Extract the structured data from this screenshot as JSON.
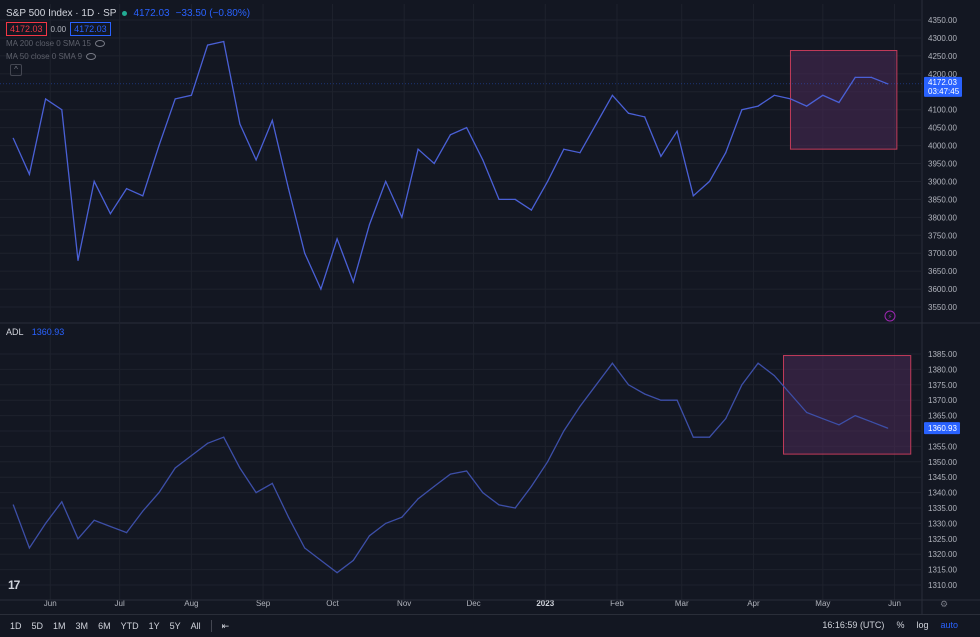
{
  "header": {
    "symbol": "S&P 500 Index · 1D · SP",
    "last": "4172.03",
    "change": "−33.50 (−0.80%)",
    "sell": "4172.03",
    "spread": "0.00",
    "buy": "4172.03",
    "ma200": "MA 200 close 0 SMA 15",
    "ma50": "MA 50 close 0 SMA 9",
    "collapse_icon": "chevron-up-icon"
  },
  "adl_legend": {
    "name": "ADL",
    "value": "1360.93"
  },
  "price_axis": {
    "ticks": [
      "4350.00",
      "4300.00",
      "4250.00",
      "4200.00",
      "4150.00",
      "4100.00",
      "4050.00",
      "4000.00",
      "3950.00",
      "3900.00",
      "3850.00",
      "3800.00",
      "3750.00",
      "3700.00",
      "3650.00",
      "3600.00",
      "3550.00"
    ],
    "label_price": "4172.03",
    "label_countdown": "03:47:45"
  },
  "adl_axis": {
    "ticks": [
      "1385.00",
      "1380.00",
      "1375.00",
      "1370.00",
      "1365.00",
      "1360.00",
      "1355.00",
      "1350.00",
      "1345.00",
      "1340.00",
      "1335.00",
      "1330.00",
      "1325.00",
      "1320.00",
      "1315.00",
      "1310.00"
    ],
    "label": "1360.93"
  },
  "time_axis": [
    "Jun",
    "Jul",
    "Aug",
    "Sep",
    "Oct",
    "Nov",
    "Dec",
    "2023",
    "Feb",
    "Mar",
    "Apr",
    "May",
    "Jun"
  ],
  "bottom_bar": {
    "timeframes": [
      "1D",
      "5D",
      "1M",
      "3M",
      "6M",
      "YTD",
      "1Y",
      "5Y",
      "All"
    ],
    "time": "16:16:59 (UTC)",
    "percent": "%",
    "log": "log",
    "auto": "auto"
  },
  "colors": {
    "background": "#131722",
    "line": "#4a60d6",
    "line_adl": "#3d4fa8",
    "highlight_border": "#c23b5a",
    "highlight_fill": "#4a2a55",
    "accent": "#2962ff",
    "down": "#f23645"
  },
  "chart_data": [
    {
      "type": "line",
      "title": "S&P 500 Index · 1D · SP",
      "ylim": [
        3550,
        4350
      ],
      "x": [
        "2022-05-16",
        "2022-05-23",
        "2022-05-30",
        "2022-06-06",
        "2022-06-13",
        "2022-06-20",
        "2022-06-27",
        "2022-07-04",
        "2022-07-11",
        "2022-07-18",
        "2022-07-25",
        "2022-08-01",
        "2022-08-08",
        "2022-08-15",
        "2022-08-22",
        "2022-08-29",
        "2022-09-05",
        "2022-09-12",
        "2022-09-19",
        "2022-09-26",
        "2022-10-03",
        "2022-10-10",
        "2022-10-17",
        "2022-10-24",
        "2022-10-31",
        "2022-11-07",
        "2022-11-14",
        "2022-11-21",
        "2022-11-28",
        "2022-12-05",
        "2022-12-12",
        "2022-12-19",
        "2022-12-26",
        "2023-01-02",
        "2023-01-09",
        "2023-01-16",
        "2023-01-23",
        "2023-01-30",
        "2023-02-06",
        "2023-02-13",
        "2023-02-20",
        "2023-02-27",
        "2023-03-06",
        "2023-03-13",
        "2023-03-20",
        "2023-03-27",
        "2023-04-03",
        "2023-04-10",
        "2023-04-17",
        "2023-04-24",
        "2023-05-01",
        "2023-05-08",
        "2023-05-15",
        "2023-05-22",
        "2023-05-29"
      ],
      "series": [
        {
          "values": [
            4020,
            3920,
            4130,
            4100,
            3680,
            3900,
            3810,
            3880,
            3860,
            4000,
            4130,
            4140,
            4280,
            4290,
            4060,
            3960,
            4070,
            3880,
            3700,
            3600,
            3740,
            3620,
            3780,
            3900,
            3800,
            3990,
            3950,
            4030,
            4050,
            3960,
            3850,
            3850,
            3820,
            3900,
            3990,
            3980,
            4060,
            4140,
            4090,
            4080,
            3970,
            4040,
            3860,
            3900,
            3980,
            4100,
            4110,
            4140,
            4130,
            4110,
            4140,
            4120,
            4190,
            4190,
            4172.03
          ]
        }
      ],
      "highlight": {
        "x": [
          "2023-04-17",
          "2023-06-02"
        ],
        "y": [
          3990,
          4265
        ]
      }
    },
    {
      "type": "line",
      "title": "ADL",
      "ylim": [
        1308,
        1387
      ],
      "x": [
        "2022-05-16",
        "2022-05-23",
        "2022-05-30",
        "2022-06-06",
        "2022-06-13",
        "2022-06-20",
        "2022-06-27",
        "2022-07-04",
        "2022-07-11",
        "2022-07-18",
        "2022-07-25",
        "2022-08-01",
        "2022-08-08",
        "2022-08-15",
        "2022-08-22",
        "2022-08-29",
        "2022-09-05",
        "2022-09-12",
        "2022-09-19",
        "2022-09-26",
        "2022-10-03",
        "2022-10-10",
        "2022-10-17",
        "2022-10-24",
        "2022-10-31",
        "2022-11-07",
        "2022-11-14",
        "2022-11-21",
        "2022-11-28",
        "2022-12-05",
        "2022-12-12",
        "2022-12-19",
        "2022-12-26",
        "2023-01-02",
        "2023-01-09",
        "2023-01-16",
        "2023-01-23",
        "2023-01-30",
        "2023-02-06",
        "2023-02-13",
        "2023-02-20",
        "2023-02-27",
        "2023-03-06",
        "2023-03-13",
        "2023-03-20",
        "2023-03-27",
        "2023-04-03",
        "2023-04-10",
        "2023-04-17",
        "2023-04-24",
        "2023-05-01",
        "2023-05-08",
        "2023-05-15",
        "2023-05-22",
        "2023-05-29"
      ],
      "series": [
        {
          "name": "ADL",
          "values": [
            1336,
            1322,
            1330,
            1337,
            1325,
            1331,
            1329,
            1327,
            1334,
            1340,
            1348,
            1352,
            1356,
            1358,
            1348,
            1340,
            1343,
            1332,
            1322,
            1318,
            1314,
            1318,
            1326,
            1330,
            1332,
            1338,
            1342,
            1346,
            1347,
            1340,
            1336,
            1335,
            1342,
            1350,
            1360,
            1368,
            1375,
            1382,
            1375,
            1372,
            1370,
            1370,
            1358,
            1358,
            1364,
            1375,
            1382,
            1378,
            1372,
            1366,
            1364,
            1362,
            1365,
            1363,
            1360.93
          ]
        }
      ],
      "highlight": {
        "x": [
          "2023-04-14",
          "2023-06-08"
        ],
        "y": [
          1352.5,
          1384.5
        ]
      }
    }
  ]
}
